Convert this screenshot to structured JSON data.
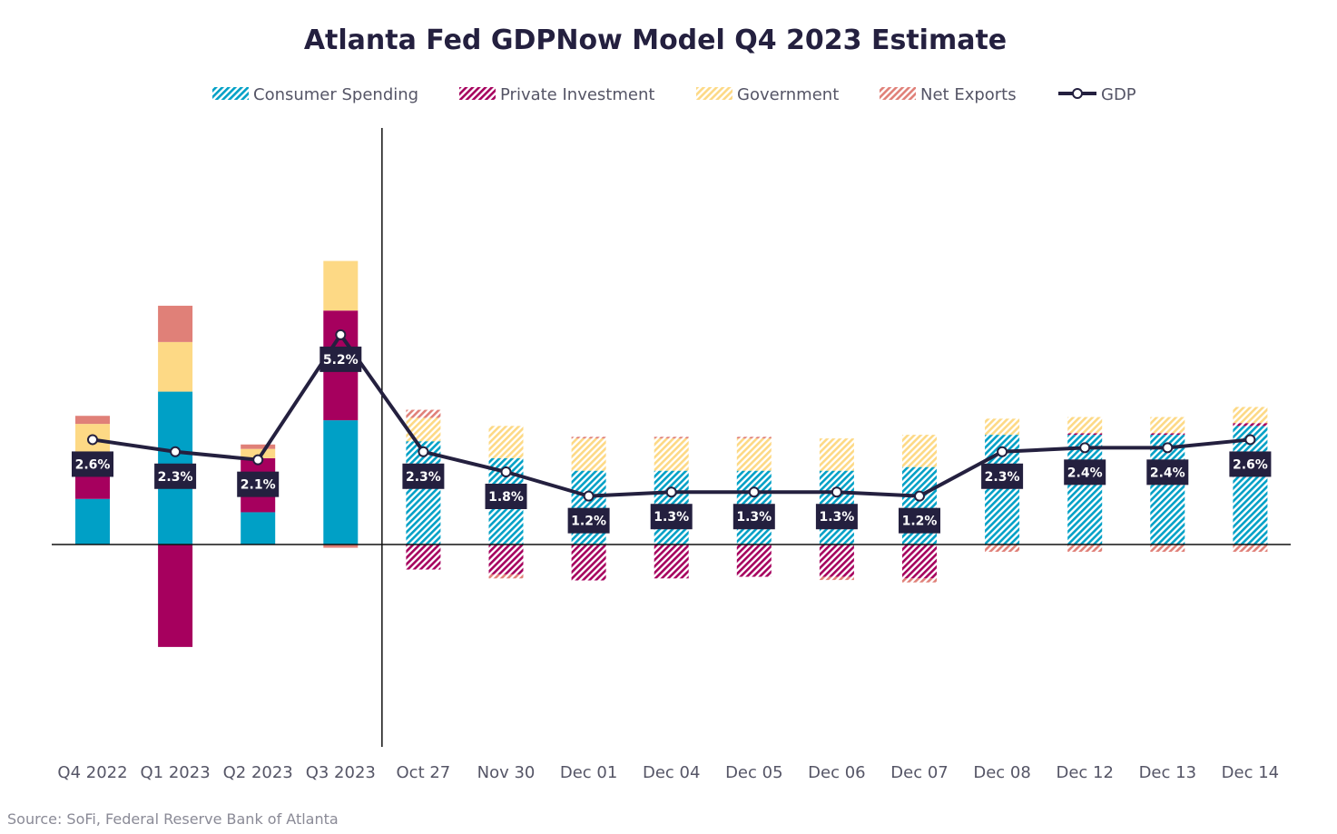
{
  "chart_data": {
    "type": "bar",
    "stacked": true,
    "title": "Atlanta Fed GDPNow Model Q4 2023 Estimate",
    "source": "Source: SoFi, Federal Reserve Bank of Atlanta",
    "categories": [
      "Q4 2022",
      "Q1 2023",
      "Q2 2023",
      "Q3 2023",
      "Oct 27",
      "Nov 30",
      "Dec 01",
      "Dec 04",
      "Dec 05",
      "Dec 06",
      "Dec 07",
      "Dec 08",
      "Dec 12",
      "Dec 13",
      "Dec 14"
    ],
    "actual_count": 4,
    "series": [
      {
        "name": "Consumer Spending",
        "color": "#00a0c6",
        "values": [
          1.13,
          3.79,
          0.8,
          3.08,
          2.56,
          2.14,
          1.83,
          1.83,
          1.83,
          1.83,
          1.92,
          2.72,
          2.72,
          2.72,
          2.94
        ]
      },
      {
        "name": "Private Investment",
        "color": "#a6005e",
        "values": [
          0.93,
          -2.54,
          1.34,
          2.72,
          -0.62,
          -0.74,
          -0.89,
          -0.84,
          -0.8,
          -0.8,
          -0.84,
          0.0,
          0.04,
          0.04,
          0.07
        ]
      },
      {
        "name": "Government",
        "color": "#fdd985",
        "values": [
          0.93,
          1.23,
          0.23,
          1.23,
          0.58,
          0.8,
          0.8,
          0.8,
          0.8,
          0.8,
          0.8,
          0.4,
          0.4,
          0.4,
          0.4
        ]
      },
      {
        "name": "Net Exports",
        "color": "#e08078",
        "values": [
          0.2,
          0.9,
          0.11,
          -0.08,
          0.2,
          -0.1,
          0.04,
          0.04,
          0.04,
          -0.08,
          -0.1,
          -0.18,
          -0.18,
          -0.18,
          -0.18
        ]
      }
    ],
    "gdp": {
      "name": "GDP",
      "values": [
        2.6,
        2.3,
        2.1,
        5.2,
        2.3,
        1.8,
        1.2,
        1.3,
        1.3,
        1.3,
        1.2,
        2.3,
        2.4,
        2.4,
        2.6
      ]
    },
    "gdp_labels": [
      "2.6%",
      "2.3%",
      "2.1%",
      "5.2%",
      "2.3%",
      "1.8%",
      "1.2%",
      "1.3%",
      "1.3%",
      "1.3%",
      "1.2%",
      "2.3%",
      "2.4%",
      "2.4%",
      "2.6%"
    ],
    "ylim": [
      -4.5,
      9.0
    ],
    "legend_position": "top",
    "grid": false
  }
}
